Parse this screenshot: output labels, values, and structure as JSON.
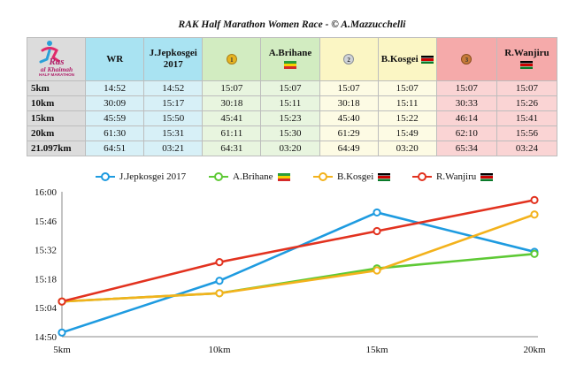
{
  "title": "RAK Half Marathon Women Race - © A.Mazzucchelli",
  "logo": {
    "line1": "Ras",
    "line2": "al Khaimah",
    "line3": "HALF MARATHON"
  },
  "table": {
    "columns": [
      {
        "key": "wr",
        "label": "WR",
        "sub": ""
      },
      {
        "key": "jj",
        "label": "J.Jepkosgei",
        "sub": "2017"
      },
      {
        "key": "ab",
        "label": "A.Brihane",
        "sub": ""
      },
      {
        "key": "bk",
        "label": "B.Kosgei",
        "sub": ""
      },
      {
        "key": "rw",
        "label": "R.Wanjiru",
        "sub": ""
      }
    ],
    "rows": [
      {
        "label": "5km",
        "cells": [
          "14:52",
          "14:52",
          "15:07",
          "15:07",
          "15:07",
          "15:07",
          "15:07",
          "15:07"
        ]
      },
      {
        "label": "10km",
        "cells": [
          "30:09",
          "15:17",
          "30:18",
          "15:11",
          "30:18",
          "15:11",
          "30:33",
          "15:26"
        ]
      },
      {
        "label": "15km",
        "cells": [
          "45:59",
          "15:50",
          "45:41",
          "15:23",
          "45:40",
          "15:22",
          "46:14",
          "15:41"
        ]
      },
      {
        "label": "20km",
        "cells": [
          "61:30",
          "15:31",
          "61:11",
          "15:30",
          "61:29",
          "15:49",
          "62:10",
          "15:56"
        ]
      },
      {
        "label": "21.097km",
        "cells": [
          "64:51",
          "03:21",
          "64:31",
          "03:20",
          "64:49",
          "03:20",
          "65:34",
          "03:24"
        ]
      }
    ]
  },
  "chart_data": {
    "type": "line",
    "x": [
      "5km",
      "10km",
      "15km",
      "20km"
    ],
    "y_ticks": [
      "14:50",
      "15:04",
      "15:18",
      "15:32",
      "15:46",
      "16:00"
    ],
    "ylim_seconds": [
      890,
      960
    ],
    "y_unit": "min:sec per 5km split",
    "grid": false,
    "legend_position": "top",
    "series": [
      {
        "name": "J.Jepkosgei 2017",
        "color": "#1e9be0",
        "values": [
          "14:52",
          "15:17",
          "15:50",
          "15:31"
        ]
      },
      {
        "name": "A.Brihane",
        "color": "#5ec935",
        "values": [
          "15:07",
          "15:11",
          "15:23",
          "15:30"
        ]
      },
      {
        "name": "B.Kosgei",
        "color": "#f3b21c",
        "values": [
          "15:07",
          "15:11",
          "15:22",
          "15:49"
        ]
      },
      {
        "name": "R.Wanjiru",
        "color": "#e2321f",
        "values": [
          "15:07",
          "15:26",
          "15:41",
          "15:56"
        ]
      }
    ]
  }
}
